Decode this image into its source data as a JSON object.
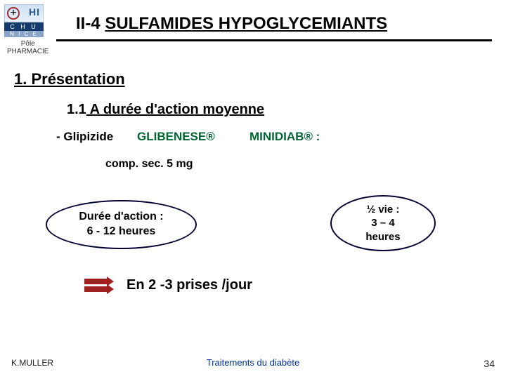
{
  "logo": {
    "hi": "HI",
    "plus": "+",
    "mid": "C H U",
    "bot": "N I C E"
  },
  "pole": {
    "l1": "Pôle",
    "l2": "PHARMACIE"
  },
  "title": {
    "prefix": "II-4 ",
    "main": "SULFAMIDES HYPOGLYCEMIANTS"
  },
  "section1": "1. Présentation",
  "section11": {
    "prefix": "1.1",
    "text": " A durée d'action moyenne"
  },
  "drug": "- Glipizide",
  "brand1": "GLIBENESE®",
  "brand2": "MINIDIAB®  :",
  "comp": "comp. sec. 5 mg",
  "ellipse1": {
    "l1": "Durée d'action :",
    "l2": "6 - 12 heures"
  },
  "ellipse2": {
    "l1": "½ vie :",
    "l2": "3 – 4",
    "l3": "heures"
  },
  "prises": "En 2 -3 prises /jour",
  "footer": {
    "left": "K.MULLER",
    "center": "Traitements du diabète",
    "num": "34"
  },
  "colors": {
    "brand": "#006633",
    "ellipseBorder": "#000033",
    "arrow": "#a02020",
    "footerCenter": "#003399"
  }
}
